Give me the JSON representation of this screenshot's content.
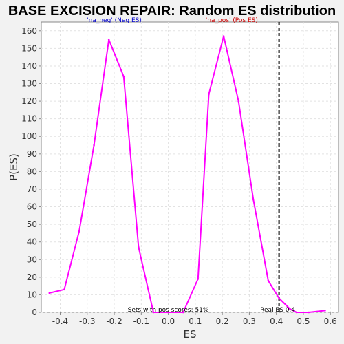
{
  "chart_data": {
    "type": "line",
    "title": "BASE EXCISION REPAIR: Random ES distribution",
    "xlabel": "ES",
    "ylabel": "P(ES)",
    "xlim": [
      -0.47,
      0.63
    ],
    "ylim": [
      0,
      165
    ],
    "x_ticks": [
      -0.4,
      -0.3,
      -0.2,
      -0.1,
      0.0,
      0.1,
      0.2,
      0.3,
      0.4,
      0.5,
      0.6
    ],
    "x_tick_labels": [
      "-0.4",
      "-0.3",
      "-0.2",
      "-0.1",
      "0.0",
      "0.1",
      "0.2",
      "0.3",
      "0.4",
      "0.5",
      "0.6"
    ],
    "y_ticks": [
      0,
      10,
      20,
      30,
      40,
      50,
      60,
      70,
      80,
      90,
      100,
      110,
      120,
      130,
      140,
      150,
      160
    ],
    "grid": true,
    "series": [
      {
        "color": "#ff00ff",
        "x": [
          -0.44,
          -0.385,
          -0.33,
          -0.275,
          -0.22,
          -0.165,
          -0.11,
          -0.055,
          0.0,
          0.055,
          0.11,
          0.15,
          0.205,
          0.26,
          0.315,
          0.37,
          0.41,
          0.45,
          0.475,
          0.52,
          0.58
        ],
        "y": [
          11,
          13,
          46,
          95,
          155,
          134,
          37,
          0,
          0,
          0,
          19,
          124,
          157,
          120,
          64,
          18,
          8,
          2,
          0,
          0,
          1
        ]
      }
    ],
    "annotations": [
      {
        "text": "'na_neg' (Neg ES)",
        "color": "#0000cc",
        "x": -0.2,
        "y": 160
      },
      {
        "text": "'na_pos' (Pos ES)",
        "color": "#cc0000",
        "x": 0.235,
        "y": 160
      },
      {
        "text": "Sets with pos scores: 51%",
        "color": "#000000",
        "x": 0.0,
        "y": 0
      },
      {
        "text": "Real ES 0.4",
        "color": "#000000",
        "x": 0.41,
        "y": 0
      }
    ],
    "reference_line": {
      "x": 0.41,
      "style": "dashed",
      "color": "#000000"
    }
  }
}
